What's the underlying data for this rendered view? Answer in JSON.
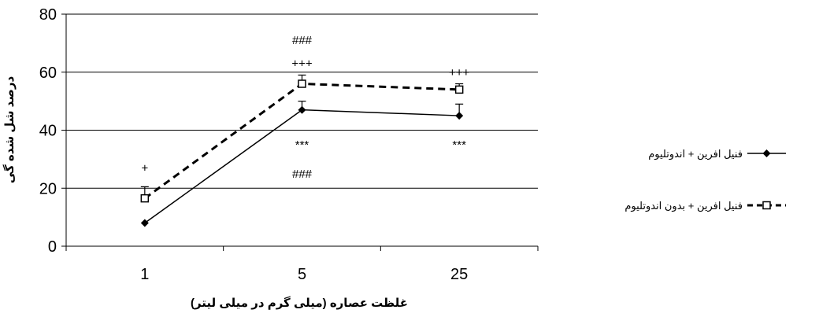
{
  "chart_data": {
    "type": "line",
    "title": "",
    "xlabel": "غلظت عصاره (میلی گرم در میلی لیتر)",
    "ylabel": "درصد شل شده گی",
    "ylim": [
      0,
      80
    ],
    "yticks": [
      0,
      20,
      40,
      60,
      80
    ],
    "grid": "horizontal",
    "legend_position": "right",
    "categories": [
      "1",
      "5",
      "25"
    ],
    "series": [
      {
        "name": "فنیل افرین + اندوتلیوم",
        "values": [
          8,
          47,
          45
        ],
        "error_plus": [
          0,
          3,
          4
        ],
        "marker": "filled-diamond",
        "line_style": "solid",
        "color": "#000000"
      },
      {
        "name": "فنیل افرین + بدون اندوتلیوم",
        "values": [
          16.5,
          56,
          54
        ],
        "error_plus": [
          4,
          3,
          2
        ],
        "marker": "open-square",
        "line_style": "dashed",
        "color": "#000000"
      }
    ],
    "annotations": [
      {
        "text": "+",
        "x": "1",
        "y": 27
      },
      {
        "text": "###",
        "x": "5",
        "y": 71
      },
      {
        "text": "+++",
        "x": "5",
        "y": 63
      },
      {
        "text": "***",
        "x": "5",
        "y": 35
      },
      {
        "text": "###",
        "x": "5",
        "y": 25
      },
      {
        "text": "+++",
        "x": "25",
        "y": 60
      },
      {
        "text": "***",
        "x": "25",
        "y": 35
      }
    ]
  }
}
